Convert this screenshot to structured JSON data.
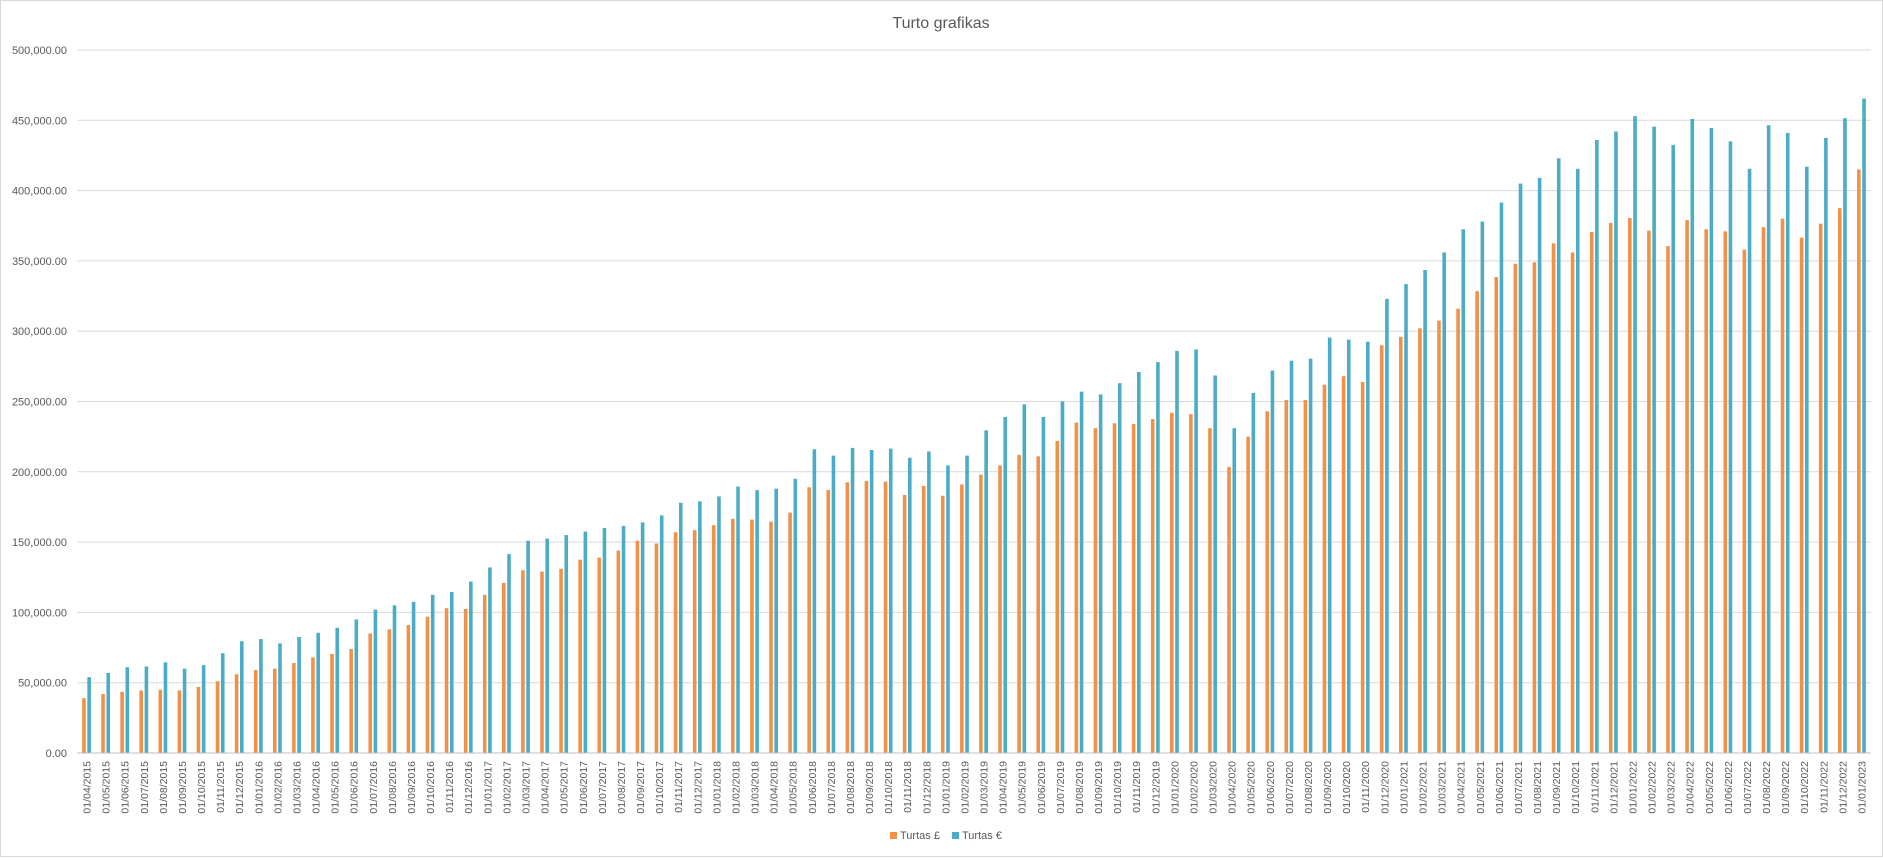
{
  "chart_data": {
    "type": "bar",
    "title": "Turto grafikas",
    "xlabel": "",
    "ylabel": "",
    "ylim": [
      0,
      500000
    ],
    "y_ticks": [
      0,
      50000,
      100000,
      150000,
      200000,
      250000,
      300000,
      350000,
      400000,
      450000,
      500000
    ],
    "y_tick_labels": [
      "0.00",
      "50,000.00",
      "100,000.00",
      "150,000.00",
      "200,000.00",
      "250,000.00",
      "300,000.00",
      "350,000.00",
      "400,000.00",
      "450,000.00",
      "500,000.00"
    ],
    "grid": true,
    "legend_position": "bottom",
    "categories": [
      "01/04/2015",
      "01/05/2015",
      "01/06/2015",
      "01/07/2015",
      "01/08/2015",
      "01/09/2015",
      "01/10/2015",
      "01/11/2015",
      "01/12/2015",
      "01/01/2016",
      "01/02/2016",
      "01/03/2016",
      "01/04/2016",
      "01/05/2016",
      "01/06/2016",
      "01/07/2016",
      "01/08/2016",
      "01/09/2016",
      "01/10/2016",
      "01/11/2016",
      "01/12/2016",
      "01/01/2017",
      "01/02/2017",
      "01/03/2017",
      "01/04/2017",
      "01/05/2017",
      "01/06/2017",
      "01/07/2017",
      "01/08/2017",
      "01/09/2017",
      "01/10/2017",
      "01/11/2017",
      "01/12/2017",
      "01/01/2018",
      "01/02/2018",
      "01/03/2018",
      "01/04/2018",
      "01/05/2018",
      "01/06/2018",
      "01/07/2018",
      "01/08/2018",
      "01/09/2018",
      "01/10/2018",
      "01/11/2018",
      "01/12/2018",
      "01/01/2019",
      "01/02/2019",
      "01/03/2019",
      "01/04/2019",
      "01/05/2019",
      "01/06/2019",
      "01/07/2019",
      "01/08/2019",
      "01/09/2019",
      "01/10/2019",
      "01/11/2019",
      "01/12/2019",
      "01/01/2020",
      "01/02/2020",
      "01/03/2020",
      "01/04/2020",
      "01/05/2020",
      "01/06/2020",
      "01/07/2020",
      "01/08/2020",
      "01/09/2020",
      "01/10/2020",
      "01/11/2020",
      "01/12/2020",
      "01/01/2021",
      "01/02/2021",
      "01/03/2021",
      "01/04/2021",
      "01/05/2021",
      "01/06/2021",
      "01/07/2021",
      "01/08/2021",
      "01/09/2021",
      "01/10/2021",
      "01/11/2021",
      "01/12/2021",
      "01/01/2022",
      "01/02/2022",
      "01/03/2022",
      "01/04/2022",
      "01/05/2022",
      "01/06/2022",
      "01/07/2022",
      "01/08/2022",
      "01/09/2022",
      "01/10/2022",
      "01/11/2022",
      "01/12/2022",
      "01/01/2023"
    ],
    "series": [
      {
        "name": "Turtas £",
        "color": "#f0914a",
        "values": [
          39000,
          42000,
          43500,
          44500,
          45000,
          44500,
          47000,
          51000,
          56000,
          59000,
          60000,
          64000,
          68000,
          70500,
          74000,
          85000,
          88000,
          91000,
          97000,
          103000,
          102500,
          112500,
          121000,
          130000,
          129000,
          131000,
          137500,
          139000,
          144000,
          151000,
          149000,
          157000,
          158500,
          162000,
          166500,
          166000,
          164500,
          171000,
          189000,
          187000,
          192500,
          193500,
          193000,
          183500,
          190000,
          183000,
          191000,
          198000,
          204500,
          212000,
          211000,
          222000,
          235000,
          231000,
          234500,
          234000,
          237500,
          242000,
          241000,
          231000,
          203500,
          225000,
          243000,
          251000,
          251000,
          262000,
          268000,
          264000,
          290000,
          296000,
          302000,
          307500,
          316000,
          328500,
          338500,
          348000,
          349000,
          362500,
          356000,
          370500,
          377000,
          380500,
          371500,
          360500,
          379000,
          372500,
          371000,
          358000,
          374000,
          380000,
          366500,
          376500,
          387500,
          415000
        ]
      },
      {
        "name": "Turtas €",
        "color": "#4aacc6",
        "values": [
          54000,
          57000,
          61000,
          61500,
          64500,
          60000,
          62500,
          71000,
          79500,
          81000,
          78000,
          82500,
          85500,
          89000,
          95000,
          102000,
          105000,
          107500,
          112500,
          114500,
          122000,
          132000,
          141500,
          151000,
          152500,
          155000,
          157500,
          160000,
          161500,
          164000,
          169000,
          178000,
          179000,
          182500,
          189500,
          187000,
          188000,
          195000,
          216000,
          211500,
          217000,
          215500,
          216500,
          210000,
          214500,
          204500,
          211500,
          229500,
          239000,
          248000,
          239000,
          250000,
          257000,
          255000,
          263000,
          271000,
          278000,
          286000,
          287000,
          268500,
          231000,
          256000,
          272000,
          279000,
          280500,
          295500,
          294000,
          292500,
          323000,
          333500,
          343500,
          356000,
          372500,
          378000,
          391500,
          405000,
          409000,
          423000,
          415500,
          436000,
          442000,
          453000,
          445500,
          432500,
          451000,
          444500,
          435000,
          415500,
          446500,
          441000,
          417000,
          437500,
          451500,
          465500
        ]
      }
    ]
  }
}
